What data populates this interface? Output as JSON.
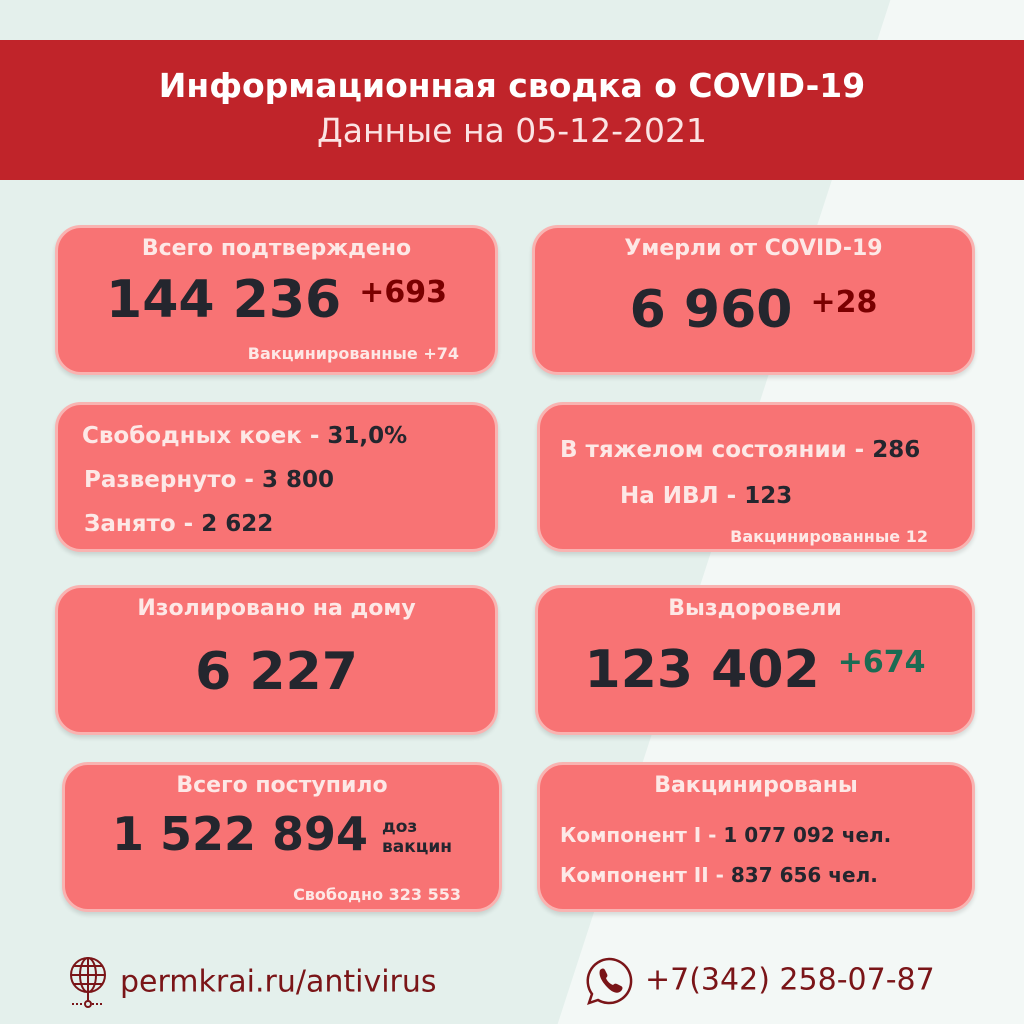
{
  "header": {
    "title": "Информационная сводка о COVID-19",
    "subtitle": "Данные на  05-12-2021"
  },
  "confirmed": {
    "title": "Всего подтверждено",
    "value": "144 236",
    "delta": "+693",
    "vaccinated": "Вакцинированные +74"
  },
  "deaths": {
    "title": "Умерли от COVID-19",
    "value": "6 960",
    "delta": "+28"
  },
  "beds": {
    "free_label": "Свободных коек - ",
    "free_value": "31,0%",
    "deployed_label": "Развернуто - ",
    "deployed_value": "3 800",
    "occupied_label": "Занято - ",
    "occupied_value": "2 622"
  },
  "severe": {
    "label": "В тяжелом состоянии - ",
    "value": "286",
    "ivl_label": "На ИВЛ - ",
    "ivl_value": "123",
    "vaccinated": "Вакцинированные 12"
  },
  "isolated": {
    "title": "Изолировано на дому",
    "value": "6 227"
  },
  "recovered": {
    "title": "Выздоровели",
    "value": "123 402",
    "delta": "+674"
  },
  "doses": {
    "title": "Всего поступило",
    "value": "1 522 894",
    "unit1": "доз",
    "unit2": "вакцин",
    "free": "Свободно 323 553"
  },
  "vaccinated": {
    "title": "Вакцинированы",
    "c1_label": "Компонент I - ",
    "c1_value": "1 077 092 чел.",
    "c2_label": "Компонент II - ",
    "c2_value": "837 656 чел."
  },
  "footer": {
    "site": "permkrai.ru/antivirus",
    "phone": "+7(342) 258-07-87",
    "site_icon": "globe-icon",
    "phone_icon": "phone-icon"
  },
  "colors": {
    "header": "#c0242a",
    "card": "#f87374",
    "delta_red": "#7a0000",
    "delta_green": "#1c6b53"
  }
}
